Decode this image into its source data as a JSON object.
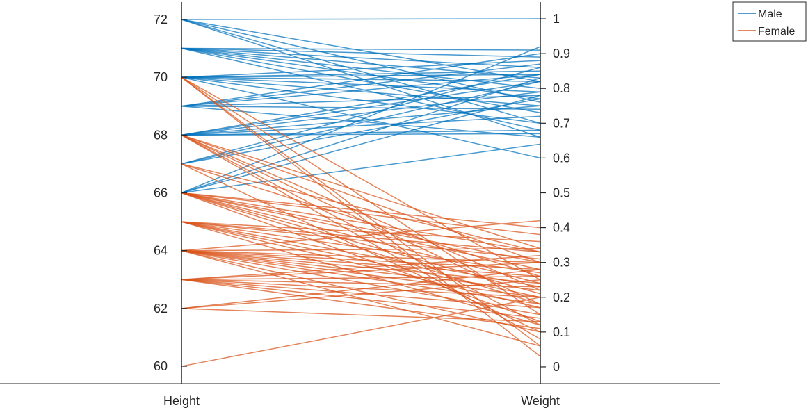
{
  "chart_data": {
    "type": "parallel_coordinates",
    "coordinates": [
      "Height",
      "Weight"
    ],
    "axes": [
      {
        "label": "Height",
        "ylim": [
          59.4,
          72.6
        ],
        "ticks": [
          60,
          62,
          64,
          66,
          68,
          70,
          72
        ]
      },
      {
        "label": "Weight",
        "ylim": [
          -0.048,
          1.048
        ],
        "ticks": [
          0,
          0.1,
          0.2,
          0.3,
          0.4,
          0.5,
          0.6,
          0.7,
          0.8,
          0.9,
          1
        ]
      }
    ],
    "legend": {
      "position": "top-right"
    },
    "series": [
      {
        "name": "Male",
        "color": "#0072BD",
        "lines": [
          [
            72,
            1.0
          ],
          [
            72,
            0.82
          ],
          [
            72,
            0.76
          ],
          [
            72,
            0.7
          ],
          [
            72,
            0.66
          ],
          [
            71,
            0.91
          ],
          [
            71,
            0.89
          ],
          [
            71,
            0.86
          ],
          [
            71,
            0.83
          ],
          [
            71,
            0.8
          ],
          [
            71,
            0.77
          ],
          [
            71,
            0.73
          ],
          [
            71,
            0.68
          ],
          [
            70,
            0.88
          ],
          [
            70,
            0.85
          ],
          [
            70,
            0.84
          ],
          [
            70,
            0.82
          ],
          [
            70,
            0.79
          ],
          [
            70,
            0.75
          ],
          [
            70,
            0.7
          ],
          [
            70,
            0.6
          ],
          [
            69,
            0.9
          ],
          [
            69,
            0.87
          ],
          [
            69,
            0.84
          ],
          [
            69,
            0.78
          ],
          [
            69,
            0.74
          ],
          [
            69,
            0.66
          ],
          [
            68,
            0.84
          ],
          [
            68,
            0.82
          ],
          [
            68,
            0.79
          ],
          [
            68,
            0.75
          ],
          [
            68,
            0.72
          ],
          [
            68,
            0.68
          ],
          [
            68,
            0.67
          ],
          [
            67,
            0.86
          ],
          [
            67,
            0.82
          ],
          [
            67,
            0.77
          ],
          [
            66,
            0.92
          ],
          [
            66,
            0.83
          ],
          [
            66,
            0.78
          ],
          [
            66,
            0.64
          ]
        ]
      },
      {
        "name": "Female",
        "color": "#D95319",
        "lines": [
          [
            70,
            0.25
          ],
          [
            70,
            0.15
          ],
          [
            70,
            0.06
          ],
          [
            70,
            0.03
          ],
          [
            68,
            0.34
          ],
          [
            68,
            0.3
          ],
          [
            68,
            0.22
          ],
          [
            68,
            0.18
          ],
          [
            68,
            0.12
          ],
          [
            68,
            0.08
          ],
          [
            67,
            0.33
          ],
          [
            67,
            0.26
          ],
          [
            67,
            0.1
          ],
          [
            66,
            0.4
          ],
          [
            66,
            0.38
          ],
          [
            66,
            0.33
          ],
          [
            66,
            0.3
          ],
          [
            66,
            0.28
          ],
          [
            66,
            0.24
          ],
          [
            66,
            0.21
          ],
          [
            66,
            0.18
          ],
          [
            66,
            0.13
          ],
          [
            65,
            0.36
          ],
          [
            65,
            0.33
          ],
          [
            65,
            0.31
          ],
          [
            65,
            0.27
          ],
          [
            65,
            0.23
          ],
          [
            65,
            0.2
          ],
          [
            65,
            0.17
          ],
          [
            65,
            0.12
          ],
          [
            64,
            0.42
          ],
          [
            64,
            0.34
          ],
          [
            64,
            0.3
          ],
          [
            64,
            0.28
          ],
          [
            64,
            0.26
          ],
          [
            64,
            0.24
          ],
          [
            64,
            0.22
          ],
          [
            64,
            0.2
          ],
          [
            64,
            0.18
          ],
          [
            64,
            0.15
          ],
          [
            64,
            0.1
          ],
          [
            64,
            0.06
          ],
          [
            63,
            0.32
          ],
          [
            63,
            0.3
          ],
          [
            63,
            0.26
          ],
          [
            63,
            0.23
          ],
          [
            63,
            0.2
          ],
          [
            63,
            0.17
          ],
          [
            63,
            0.14
          ],
          [
            63,
            0.11
          ],
          [
            62,
            0.28
          ],
          [
            62,
            0.25
          ],
          [
            62,
            0.13
          ],
          [
            60,
            0.2
          ]
        ]
      }
    ]
  }
}
